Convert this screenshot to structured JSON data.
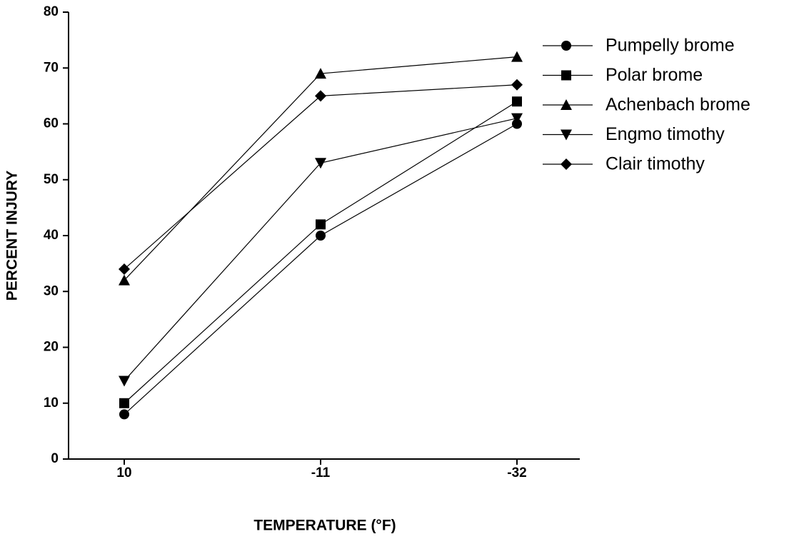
{
  "chart_data": {
    "type": "line",
    "x_label": "TEMPERATURE (°F)",
    "y_label": "PERCENT INJURY",
    "categories": [
      "10",
      "-11",
      "-32"
    ],
    "ylim": [
      0,
      80
    ],
    "yticks": [
      0,
      10,
      20,
      30,
      40,
      50,
      60,
      70,
      80
    ],
    "legend": "top-right",
    "series": [
      {
        "name": "Pumpelly brome",
        "color": "#000000",
        "marker": "circle",
        "values": [
          8,
          40,
          60
        ]
      },
      {
        "name": "Polar brome",
        "color": "#000000",
        "marker": "square",
        "values": [
          10,
          42,
          64
        ]
      },
      {
        "name": "Achenbach brome",
        "color": "#000000",
        "marker": "triangle-up",
        "values": [
          32,
          69,
          72
        ]
      },
      {
        "name": "Engmo timothy",
        "color": "#000000",
        "marker": "triangle-down",
        "values": [
          14,
          53,
          61
        ]
      },
      {
        "name": "Clair timothy",
        "color": "#000000",
        "marker": "diamond",
        "values": [
          34,
          65,
          67
        ]
      }
    ]
  }
}
